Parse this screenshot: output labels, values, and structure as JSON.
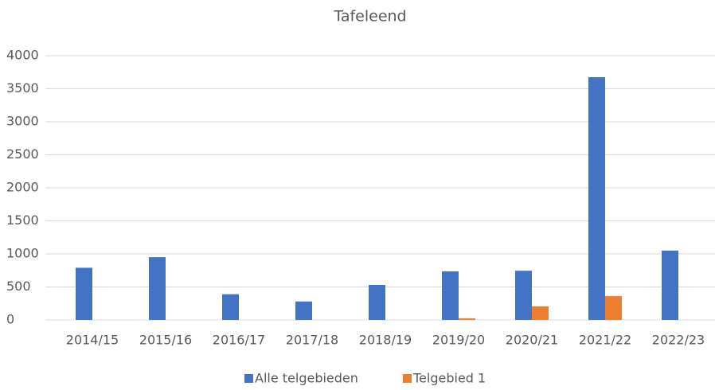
{
  "chart_data": {
    "type": "bar",
    "title": "Tafeleend",
    "categories": [
      "2014/15",
      "2015/16",
      "2016/17",
      "2017/18",
      "2018/19",
      "2019/20",
      "2020/21",
      "2021/22",
      "2022/23"
    ],
    "series": [
      {
        "name": "Alle telgebieden",
        "color": "#4472c4",
        "values": [
          790,
          950,
          390,
          280,
          530,
          735,
          745,
          3675,
          1050
        ]
      },
      {
        "name": "Telgebied 1",
        "color": "#ed7d31",
        "values": [
          0,
          0,
          0,
          0,
          0,
          25,
          205,
          360,
          0
        ]
      }
    ],
    "ylim": [
      0,
      4000
    ],
    "yticks": [
      0,
      500,
      1000,
      1500,
      2000,
      2500,
      3000,
      3500,
      4000
    ],
    "grid": true,
    "legend": "bottom"
  }
}
